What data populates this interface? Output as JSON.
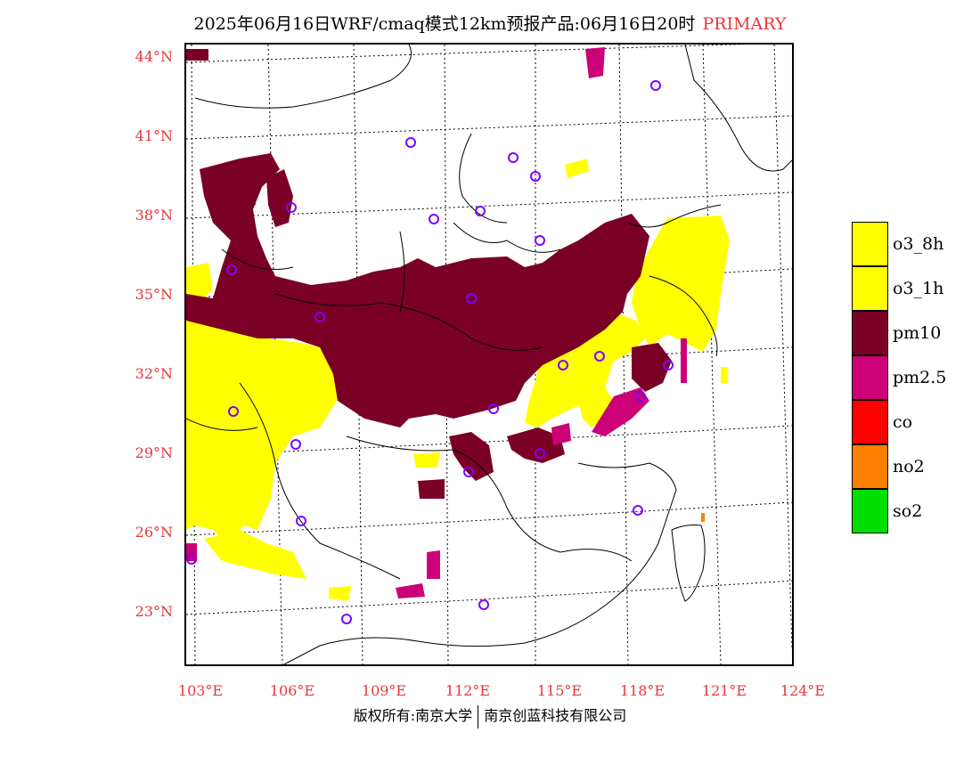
{
  "title": {
    "text": "2025年06月16日WRF/cmaq模式12km预报产品:06月16日20时",
    "tag": "PRIMARY"
  },
  "map": {
    "lat_labels": [
      "44°N",
      "41°N",
      "38°N",
      "35°N",
      "32°N",
      "29°N",
      "26°N",
      "23°N"
    ],
    "lon_labels": [
      "103°E",
      "106°E",
      "109°E",
      "112°E",
      "115°E",
      "118°E",
      "121°E",
      "124°E"
    ],
    "extent": {
      "lon": [
        102.8,
        124.0
      ],
      "lat": [
        21.0,
        44.5
      ]
    },
    "colors": {
      "pm10": "#7a0026",
      "o3": "#ffff00",
      "pm25": "#cc0077",
      "no2": "#ff8000",
      "station": "#8000ff"
    }
  },
  "legend": [
    {
      "label": "o3_8h",
      "color": "#ffff00"
    },
    {
      "label": "o3_1h",
      "color": "#ffff00"
    },
    {
      "label": "pm10",
      "color": "#7a0026"
    },
    {
      "label": "pm2.5",
      "color": "#cc0077"
    },
    {
      "label": "co",
      "color": "#ff0000"
    },
    {
      "label": "no2",
      "color": "#ff8000"
    },
    {
      "label": "so2",
      "color": "#00dd00"
    }
  ],
  "footer": {
    "left": "版权所有:南京大学",
    "right": "南京创蓝科技有限公司"
  }
}
